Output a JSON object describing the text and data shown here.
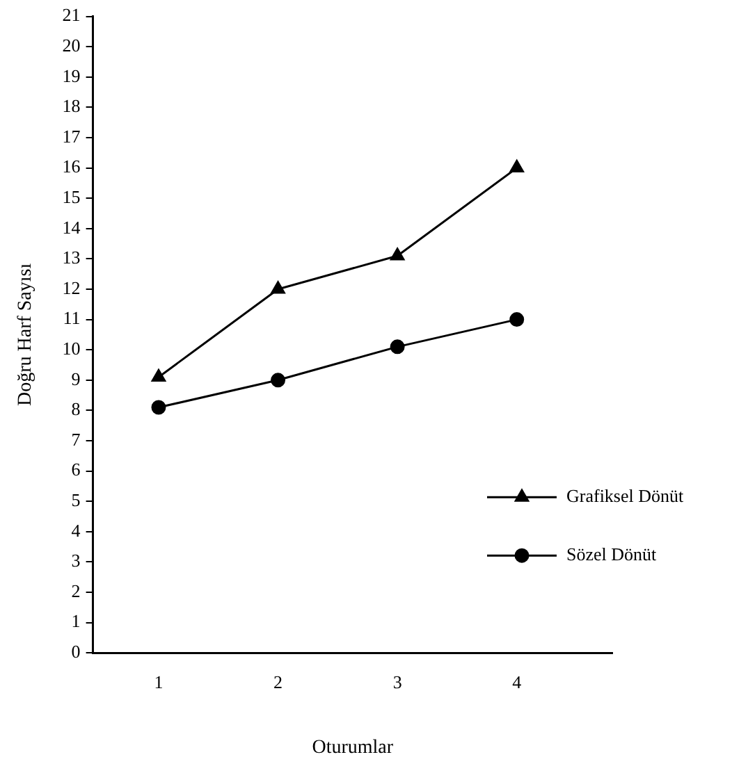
{
  "chart_data": {
    "type": "line",
    "xlabel": "Oturumlar",
    "ylabel": "Doğru Harf Sayısı",
    "x": [
      1,
      2,
      3,
      4
    ],
    "xlim": [
      0.45,
      4.8
    ],
    "xticks": [
      1,
      2,
      3,
      4
    ],
    "ylim": [
      0,
      21
    ],
    "yticks": [
      0,
      1,
      2,
      3,
      4,
      5,
      6,
      7,
      8,
      9,
      10,
      11,
      12,
      13,
      14,
      15,
      16,
      17,
      18,
      19,
      20,
      21
    ],
    "series": [
      {
        "name": "Grafiksel Dönüt",
        "color": "#000000",
        "marker": "triangle",
        "values": [
          9.1,
          12,
          13.1,
          16
        ]
      },
      {
        "name": "Sözel Dönüt",
        "color": "#000000",
        "marker": "circle",
        "values": [
          8.1,
          9,
          10.1,
          11
        ]
      }
    ],
    "grid": false,
    "legend": "bottom right",
    "line_style": "solid"
  }
}
